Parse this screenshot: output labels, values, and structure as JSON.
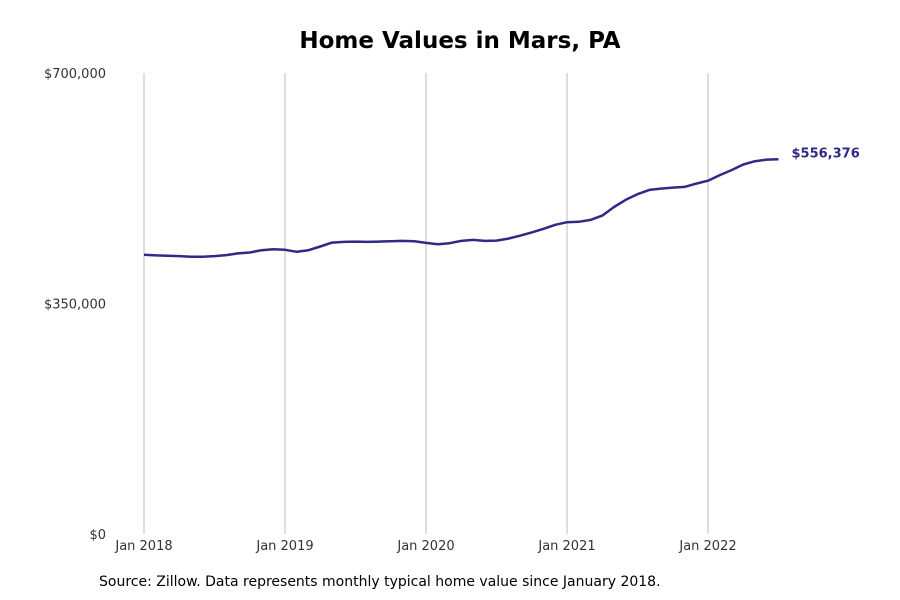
{
  "chart_data": {
    "type": "line",
    "title": "Home Values in Mars, PA",
    "xlabel": "",
    "ylabel": "",
    "ylim": [
      0,
      700000
    ],
    "y_ticks": [
      {
        "value": 0,
        "label": "$0"
      },
      {
        "value": 350000,
        "label": "$350,000"
      },
      {
        "value": 700000,
        "label": "$700,000"
      }
    ],
    "x_ticks": [
      {
        "value": "2018-01",
        "label": "Jan 2018"
      },
      {
        "value": "2019-01",
        "label": "Jan 2019"
      },
      {
        "value": "2020-01",
        "label": "Jan 2020"
      },
      {
        "value": "2021-01",
        "label": "Jan 2021"
      },
      {
        "value": "2022-01",
        "label": "Jan 2022"
      }
    ],
    "grid": "vertical",
    "line_color": "#2e2a85",
    "series": [
      {
        "x": [
          "2018-01",
          "2018-02",
          "2018-03",
          "2018-04",
          "2018-05",
          "2018-06",
          "2018-07",
          "2018-08",
          "2018-09",
          "2018-10",
          "2018-11",
          "2018-12",
          "2019-01",
          "2019-02",
          "2019-03",
          "2019-04",
          "2019-05",
          "2019-06",
          "2019-07",
          "2019-08",
          "2019-09",
          "2019-10",
          "2019-11",
          "2019-12",
          "2020-01",
          "2020-02",
          "2020-03",
          "2020-04",
          "2020-05",
          "2020-06",
          "2020-07",
          "2020-08",
          "2020-09",
          "2020-10",
          "2020-11",
          "2020-12",
          "2021-01",
          "2021-02",
          "2021-03",
          "2021-04",
          "2021-05",
          "2021-06",
          "2021-07",
          "2021-08",
          "2021-09",
          "2021-10",
          "2021-11",
          "2021-12",
          "2022-01",
          "2022-02",
          "2022-03",
          "2022-04",
          "2022-05",
          "2022-06",
          "2022-07"
        ],
        "values": [
          424000,
          423000,
          422500,
          422000,
          421000,
          421000,
          422000,
          423500,
          426000,
          427500,
          431000,
          432500,
          431500,
          428500,
          431000,
          436500,
          442500,
          443500,
          444000,
          443500,
          444000,
          444500,
          445000,
          444500,
          442000,
          440000,
          441500,
          445000,
          446500,
          445000,
          445500,
          448500,
          453000,
          458000,
          463500,
          469500,
          473500,
          474000,
          477000,
          483500,
          496500,
          507500,
          516000,
          522500,
          524500,
          526000,
          527000,
          532000,
          536500,
          545000,
          552500,
          561000,
          566000,
          568500,
          569000
        ]
      }
    ],
    "end_label": "$556,376"
  },
  "source": "Source: Zillow. Data represents monthly typical home value since January 2018."
}
